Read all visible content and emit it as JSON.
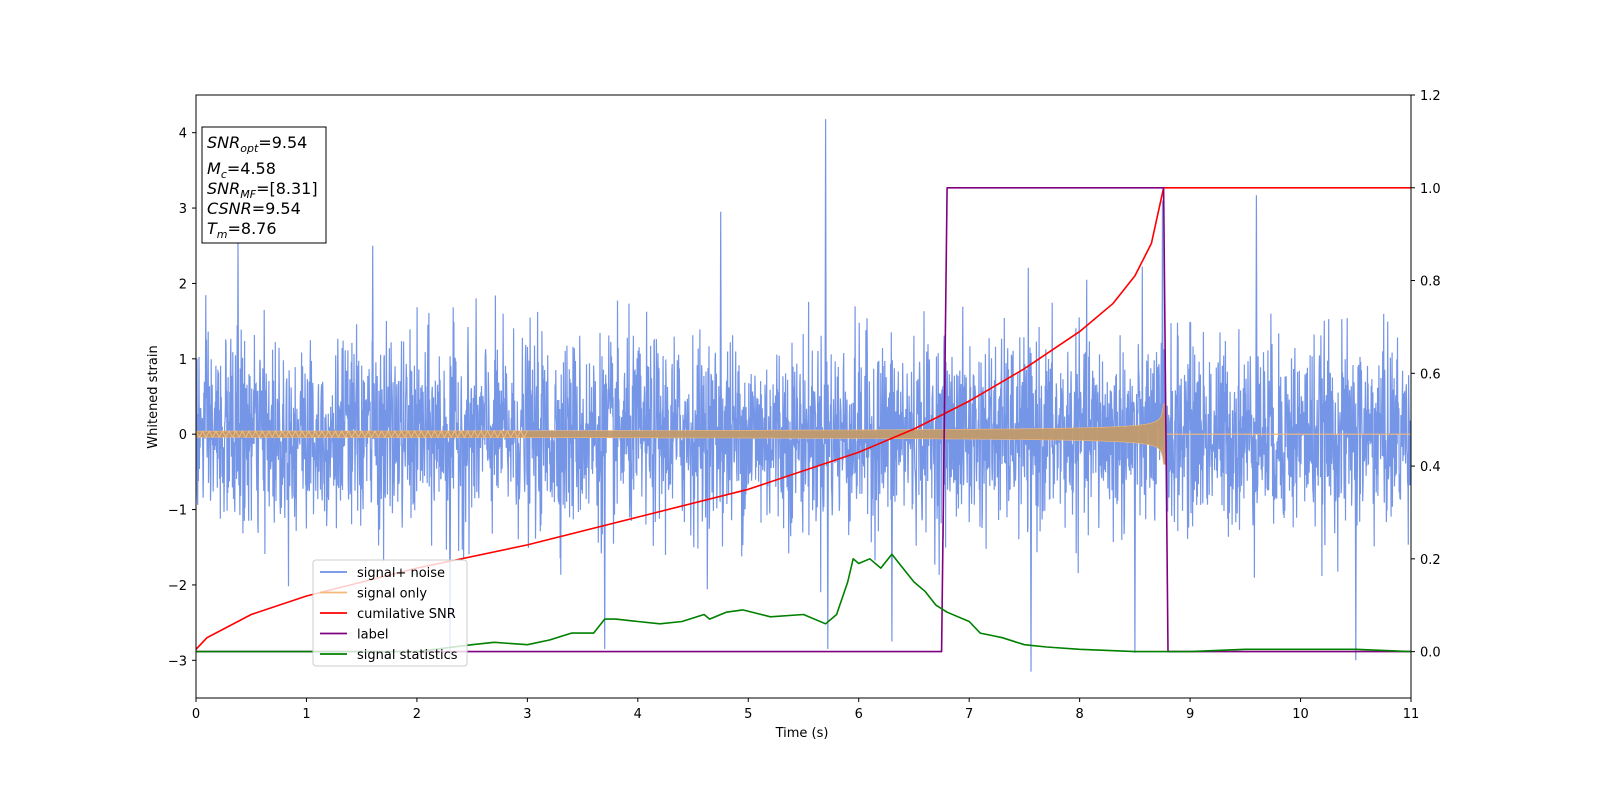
{
  "chart_data": {
    "type": "line",
    "xlabel": "Time (s)",
    "ylabel": "Whitened strain",
    "xlim": [
      0,
      11
    ],
    "ylim": [
      -3.5,
      4.5
    ],
    "y2lim": [
      -0.1,
      1.2
    ],
    "x_ticks": [
      "0",
      "1",
      "2",
      "3",
      "4",
      "5",
      "6",
      "7",
      "8",
      "9",
      "10",
      "11"
    ],
    "y_ticks": [
      "−3",
      "−2",
      "−1",
      "0",
      "1",
      "2",
      "3",
      "4"
    ],
    "y2_ticks": [
      "0.0",
      "0.2",
      "0.4",
      "0.6",
      "0.8",
      "1.0",
      "1.2"
    ],
    "grid": false,
    "legend_position": "lower-left",
    "colors": {
      "signal_noise": "#6e8fe6",
      "signal_only": "#f5b979",
      "cumulative_snr": "#ff0000",
      "label": "#800080",
      "signal_statistics": "#008000"
    },
    "info_box": {
      "snr_opt": {
        "base": "SNR",
        "sub": "opt",
        "value": "=9.54"
      },
      "mc": {
        "base": "M",
        "sub": "c",
        "value": "=4.58"
      },
      "snr_mf": {
        "base": "SNR",
        "sub": "MF",
        "value": "=[8.31]"
      },
      "csnr": {
        "base": "CSNR",
        "value": "=9.54"
      },
      "tm": {
        "base": "T",
        "sub": "m",
        "value": "=8.76"
      }
    },
    "series": [
      {
        "name": "signal+ noise",
        "axis": "left",
        "noise_std": 0.62,
        "peaks": [
          [
            0.38,
            2.6
          ],
          [
            1.6,
            2.5
          ],
          [
            2.3,
            -3.0
          ],
          [
            3.7,
            -2.85
          ],
          [
            4.75,
            2.95
          ],
          [
            5.7,
            4.18
          ],
          [
            5.72,
            -2.85
          ],
          [
            6.3,
            -2.75
          ],
          [
            7.56,
            -3.15
          ],
          [
            8.5,
            -2.9
          ],
          [
            8.75,
            3.1
          ],
          [
            9.6,
            3.17
          ],
          [
            10.5,
            -3.0
          ]
        ]
      },
      {
        "name": "signal only",
        "axis": "left",
        "t_merge": 8.76,
        "amplitude_start": 0.04,
        "amplitude_peak": 0.65
      },
      {
        "name": "cumilative SNR",
        "axis": "right",
        "x": [
          0,
          0.1,
          0.5,
          1,
          2,
          3,
          4,
          5,
          6,
          6.5,
          7,
          7.5,
          8,
          8.3,
          8.5,
          8.65,
          8.76,
          11
        ],
        "y": [
          0.005,
          0.03,
          0.08,
          0.12,
          0.18,
          0.23,
          0.29,
          0.35,
          0.43,
          0.48,
          0.54,
          0.61,
          0.69,
          0.75,
          0.81,
          0.88,
          1.0,
          1.0
        ]
      },
      {
        "name": "label",
        "axis": "right",
        "x": [
          0,
          6.75,
          6.8,
          8.76,
          8.8,
          11
        ],
        "y": [
          0,
          0,
          1,
          1,
          0,
          0
        ]
      },
      {
        "name": "signal statistics",
        "axis": "right",
        "x": [
          0,
          2.0,
          2.5,
          2.7,
          3.0,
          3.2,
          3.4,
          3.5,
          3.6,
          3.7,
          3.8,
          4.0,
          4.2,
          4.4,
          4.6,
          4.65,
          4.8,
          4.95,
          5.2,
          5.5,
          5.7,
          5.8,
          5.9,
          5.95,
          6.0,
          6.1,
          6.2,
          6.3,
          6.4,
          6.5,
          6.6,
          6.7,
          6.8,
          7.0,
          7.1,
          7.2,
          7.3,
          7.5,
          7.7,
          8.0,
          8.5,
          9.0,
          9.5,
          10.0,
          10.5,
          11.0
        ],
        "y": [
          0,
          0.0,
          0.015,
          0.02,
          0.015,
          0.025,
          0.04,
          0.04,
          0.04,
          0.07,
          0.07,
          0.065,
          0.06,
          0.065,
          0.08,
          0.07,
          0.085,
          0.09,
          0.075,
          0.08,
          0.06,
          0.08,
          0.15,
          0.2,
          0.19,
          0.2,
          0.18,
          0.21,
          0.18,
          0.15,
          0.13,
          0.1,
          0.085,
          0.065,
          0.04,
          0.035,
          0.03,
          0.015,
          0.01,
          0.005,
          0.0,
          0.0,
          0.005,
          0.005,
          0.005,
          0.0
        ]
      }
    ]
  }
}
